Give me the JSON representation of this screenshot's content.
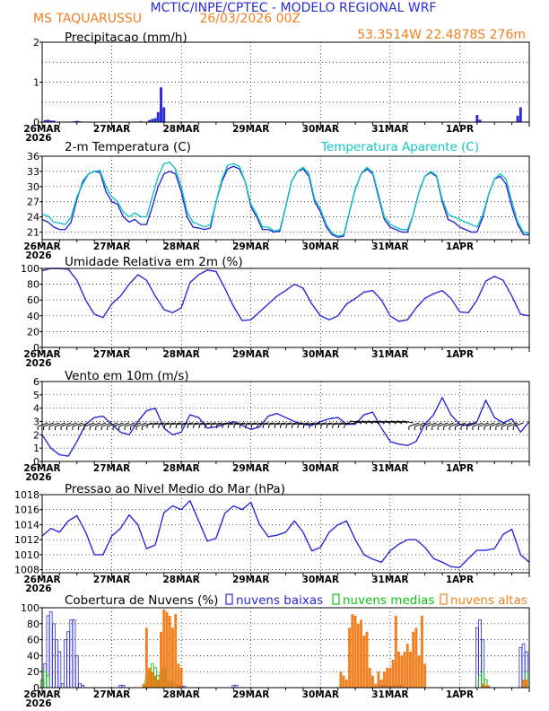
{
  "header": {
    "title": "MCTIC/INPE/CPTEC - MODELO REGIONAL WRF",
    "location": "MS TAQUARUSSU",
    "run": "26/03/2026 00Z",
    "coords": "53.3514W 22.4878S 276m"
  },
  "colors": {
    "blue": "#2a2ad8",
    "cyan": "#10c4c4",
    "green": "#10c010",
    "orange": "#f08020",
    "black": "#000000"
  },
  "x_axis": {
    "ticks": [
      "26MAR",
      "27MAR",
      "28MAR",
      "29MAR",
      "30MAR",
      "31MAR",
      "1APR"
    ],
    "year": "2026",
    "xlim_hours": [
      0,
      168
    ]
  },
  "chart_data": [
    {
      "id": "precip",
      "type": "bar",
      "title": "Precipitacao (mm/h)",
      "ylim": [
        0,
        2
      ],
      "yticks": [
        0,
        1,
        2
      ],
      "grid_y": [
        0.5,
        1,
        1.5
      ],
      "series": [
        {
          "name": "precipitacao",
          "color": "blue",
          "x": [
            1,
            2,
            3,
            4,
            11,
            12,
            13,
            34,
            37,
            38,
            39,
            40,
            41,
            42,
            150,
            151,
            164,
            165
          ],
          "values": [
            0.05,
            0.06,
            0.04,
            0.04,
            0.02,
            0.03,
            0.02,
            0.02,
            0.05,
            0.08,
            0.1,
            0.25,
            0.87,
            0.37,
            0.18,
            0.06,
            0.16,
            0.37
          ]
        }
      ]
    },
    {
      "id": "temp",
      "type": "line",
      "title": "2-m Temperatura (C)",
      "title2": "Temperatura Aparente (C)",
      "ylim": [
        19.5,
        36
      ],
      "yticks": [
        21,
        24,
        27,
        30,
        33,
        36
      ],
      "grid_y": [
        21,
        24,
        27,
        30,
        33
      ],
      "series": [
        {
          "name": "2-m Temperatura (C)",
          "color": "blue",
          "x": [
            0,
            2,
            4,
            6,
            8,
            10,
            12,
            14,
            16,
            18,
            20,
            22,
            24,
            26,
            28,
            30,
            32,
            34,
            36,
            38,
            40,
            42,
            44,
            46,
            48,
            50,
            52,
            54,
            56,
            58,
            60,
            62,
            64,
            66,
            68,
            70,
            72,
            74,
            76,
            78,
            80,
            82,
            84,
            86,
            88,
            90,
            92,
            94,
            96,
            98,
            100,
            102,
            104,
            106,
            108,
            110,
            112,
            114,
            116,
            118,
            120,
            122,
            124,
            126,
            128,
            130,
            132,
            134,
            136,
            138,
            140,
            142,
            144,
            146,
            148,
            150,
            152,
            154,
            156,
            158,
            160,
            162,
            164,
            166,
            168
          ],
          "values": [
            23.5,
            23.0,
            22.0,
            21.5,
            21.5,
            23.0,
            27.5,
            31.0,
            32.5,
            33.0,
            32.8,
            29.0,
            27.0,
            26.5,
            24.0,
            23.0,
            23.5,
            22.5,
            22.5,
            26.0,
            30.0,
            32.5,
            33.0,
            32.5,
            29.0,
            24.0,
            22.0,
            21.8,
            21.5,
            21.8,
            27.0,
            31.0,
            33.5,
            34.0,
            33.5,
            31.0,
            26.0,
            24.0,
            21.5,
            21.5,
            21.0,
            21.2,
            26.0,
            31.0,
            33.0,
            33.5,
            32.0,
            27.0,
            25.0,
            22.0,
            20.5,
            20.0,
            20.2,
            25.0,
            29.5,
            32.5,
            33.5,
            32.5,
            28.0,
            23.5,
            22.0,
            21.5,
            21.0,
            21.0,
            24.5,
            29.0,
            32.0,
            32.8,
            32.0,
            27.0,
            23.5,
            23.0,
            22.0,
            21.5,
            21.0,
            21.0,
            24.0,
            28.5,
            31.5,
            32.0,
            30.5,
            26.0,
            22.5,
            20.5,
            20.5
          ]
        },
        {
          "name": "Temperatura Aparente (C)",
          "color": "cyan",
          "x": [
            0,
            2,
            4,
            6,
            8,
            10,
            12,
            14,
            16,
            18,
            20,
            22,
            24,
            26,
            28,
            30,
            32,
            34,
            36,
            38,
            40,
            42,
            44,
            46,
            48,
            50,
            52,
            54,
            56,
            58,
            60,
            62,
            64,
            66,
            68,
            70,
            72,
            74,
            76,
            78,
            80,
            82,
            84,
            86,
            88,
            90,
            92,
            94,
            96,
            98,
            100,
            102,
            104,
            106,
            108,
            110,
            112,
            114,
            116,
            118,
            120,
            122,
            124,
            126,
            128,
            130,
            132,
            134,
            136,
            138,
            140,
            142,
            144,
            146,
            148,
            150,
            152,
            154,
            156,
            158,
            160,
            162,
            164,
            166,
            168
          ],
          "values": [
            24.5,
            24.2,
            23.0,
            22.8,
            22.5,
            24.0,
            28.0,
            30.5,
            32.5,
            33.0,
            33.2,
            30.0,
            28.0,
            27.0,
            25.0,
            24.0,
            24.8,
            24.0,
            24.0,
            28.0,
            32.0,
            34.5,
            34.8,
            33.5,
            30.0,
            25.0,
            23.0,
            22.5,
            22.0,
            22.5,
            27.0,
            31.5,
            34.2,
            34.5,
            34.0,
            31.0,
            26.5,
            24.5,
            22.0,
            22.0,
            21.2,
            21.5,
            26.0,
            31.0,
            33.0,
            33.8,
            32.5,
            27.5,
            25.5,
            22.5,
            20.8,
            20.2,
            20.5,
            25.0,
            29.5,
            32.5,
            33.8,
            32.8,
            28.5,
            24.0,
            22.5,
            22.0,
            21.5,
            21.5,
            24.5,
            29.0,
            32.0,
            33.0,
            32.2,
            27.5,
            24.5,
            24.0,
            23.5,
            23.0,
            22.5,
            22.0,
            24.5,
            28.5,
            31.5,
            32.5,
            31.5,
            27.0,
            23.0,
            21.0,
            20.8
          ]
        }
      ]
    },
    {
      "id": "rh",
      "type": "line",
      "title": "Umidade Relativa em 2m (%)",
      "ylim": [
        0,
        100
      ],
      "yticks": [
        0,
        20,
        40,
        60,
        80,
        100
      ],
      "grid_y": [
        20,
        40,
        60,
        80
      ],
      "series": [
        {
          "name": "Umidade Relativa em 2m (%)",
          "color": "blue",
          "x": [
            0,
            3,
            6,
            9,
            12,
            15,
            18,
            21,
            24,
            27,
            30,
            33,
            36,
            39,
            42,
            45,
            48,
            51,
            54,
            57,
            60,
            63,
            66,
            69,
            72,
            75,
            78,
            81,
            84,
            87,
            90,
            93,
            96,
            99,
            102,
            105,
            108,
            111,
            114,
            117,
            120,
            123,
            126,
            129,
            132,
            135,
            138,
            141,
            144,
            147,
            150,
            153,
            156,
            159,
            162,
            165,
            168
          ],
          "values": [
            97,
            100,
            100,
            99,
            85,
            60,
            42,
            38,
            55,
            65,
            80,
            92,
            85,
            65,
            48,
            44,
            50,
            82,
            92,
            98,
            96,
            75,
            52,
            34,
            35,
            45,
            55,
            65,
            72,
            80,
            75,
            55,
            40,
            35,
            40,
            55,
            62,
            70,
            72,
            60,
            40,
            33,
            35,
            50,
            62,
            68,
            72,
            62,
            45,
            44,
            60,
            84,
            90,
            85,
            65,
            42,
            40
          ]
        }
      ]
    },
    {
      "id": "wind",
      "type": "line",
      "title": "Vento em 10m (m/s)",
      "ylim": [
        0,
        6
      ],
      "yticks": [
        0,
        1,
        2,
        3,
        4,
        5,
        6
      ],
      "grid_y": [
        1,
        2,
        3,
        4,
        5
      ],
      "series": [
        {
          "name": "Vento em 10m (m/s)",
          "color": "blue",
          "x": [
            0,
            3,
            6,
            9,
            12,
            15,
            18,
            21,
            24,
            27,
            30,
            33,
            36,
            39,
            42,
            45,
            48,
            51,
            54,
            57,
            60,
            63,
            66,
            69,
            72,
            75,
            78,
            81,
            84,
            87,
            90,
            93,
            96,
            99,
            102,
            105,
            108,
            111,
            114,
            117,
            120,
            123,
            126,
            129,
            132,
            135,
            138,
            141,
            144,
            147,
            150,
            153,
            156,
            159,
            162,
            165,
            168
          ],
          "values": [
            2.0,
            1.0,
            0.5,
            0.4,
            1.5,
            2.8,
            3.3,
            3.4,
            2.8,
            2.2,
            2.0,
            3.0,
            3.8,
            4.0,
            2.5,
            2.0,
            2.2,
            3.5,
            3.3,
            2.5,
            2.6,
            2.8,
            3.0,
            2.7,
            2.4,
            2.6,
            3.4,
            3.6,
            3.3,
            3.0,
            2.8,
            2.7,
            3.0,
            3.2,
            3.3,
            2.8,
            2.8,
            3.5,
            3.7,
            2.5,
            1.5,
            1.3,
            1.2,
            1.5,
            2.8,
            3.5,
            4.8,
            3.5,
            2.8,
            2.7,
            3.0,
            4.6,
            3.3,
            2.9,
            3.2,
            2.2,
            3.0
          ]
        }
      ]
    },
    {
      "id": "press",
      "type": "line",
      "title": "Pressao ao Nivel Medio do Mar (hPa)",
      "ylim": [
        1007.6,
        1018
      ],
      "yticks": [
        1008,
        1010,
        1012,
        1014,
        1016,
        1018
      ],
      "grid_y": [
        1008,
        1010,
        1012,
        1014,
        1016
      ],
      "series": [
        {
          "name": "Pressao ao Nivel Medio do Mar (hPa)",
          "color": "blue",
          "x": [
            0,
            3,
            6,
            9,
            12,
            15,
            18,
            21,
            24,
            27,
            30,
            33,
            36,
            39,
            42,
            45,
            48,
            51,
            54,
            57,
            60,
            63,
            66,
            69,
            72,
            75,
            78,
            81,
            84,
            87,
            90,
            93,
            96,
            99,
            102,
            105,
            108,
            111,
            114,
            117,
            120,
            123,
            126,
            129,
            132,
            135,
            138,
            141,
            144,
            147,
            150,
            153,
            156,
            159,
            162,
            165,
            168
          ],
          "values": [
            1012.5,
            1013.5,
            1013.0,
            1014.5,
            1015.2,
            1013.0,
            1010.0,
            1010.0,
            1012.5,
            1013.5,
            1015.3,
            1014.0,
            1010.8,
            1011.3,
            1015.6,
            1016.5,
            1016.0,
            1017.2,
            1014.5,
            1011.8,
            1012.2,
            1015.5,
            1016.5,
            1016.0,
            1017.0,
            1014.0,
            1012.4,
            1012.6,
            1013.0,
            1014.5,
            1013.0,
            1010.5,
            1011.0,
            1013.0,
            1014.0,
            1014.5,
            1012.0,
            1010.0,
            1009.4,
            1009.0,
            1010.5,
            1011.4,
            1012.0,
            1012.0,
            1011.0,
            1009.5,
            1009.0,
            1008.4,
            1008.3,
            1009.5,
            1010.6,
            1010.6,
            1010.8,
            1012.7,
            1013.4,
            1010.0,
            1009.0
          ]
        }
      ]
    },
    {
      "id": "clouds",
      "type": "bar",
      "title": "Cobertura de Nuvens (%)",
      "legend": {
        "low": "nuvens baixas",
        "mid": "nuvens medias",
        "high": "nuvens altas"
      },
      "ylim": [
        0,
        100
      ],
      "yticks": [
        0,
        20,
        40,
        60,
        80,
        100
      ],
      "grid_y": [
        20,
        40,
        60,
        80
      ],
      "series": [
        {
          "name": "nuvens baixas",
          "color": "blue",
          "filled": false,
          "x": [
            1,
            2,
            3,
            4,
            5,
            6,
            7,
            8,
            9,
            10,
            11,
            12,
            13,
            14,
            27,
            28,
            47,
            48,
            49,
            66,
            67,
            117,
            118,
            119,
            120,
            121,
            122,
            123,
            124,
            150,
            151,
            152,
            153,
            165,
            166,
            167
          ],
          "values": [
            30,
            90,
            95,
            80,
            60,
            45,
            5,
            60,
            70,
            85,
            85,
            40,
            5,
            3,
            3,
            3,
            3,
            2,
            2,
            3,
            3,
            3,
            3,
            2,
            2,
            2,
            3,
            3,
            2,
            75,
            85,
            60,
            10,
            50,
            55,
            45
          ]
        },
        {
          "name": "nuvens medias",
          "color": "green",
          "filled": false,
          "x": [
            0,
            1,
            2,
            36,
            37,
            38,
            39,
            40,
            41,
            42,
            43,
            44,
            45,
            151,
            152,
            153,
            167
          ],
          "values": [
            10,
            20,
            15,
            10,
            20,
            30,
            25,
            15,
            20,
            25,
            10,
            8,
            5,
            15,
            20,
            10,
            20
          ]
        },
        {
          "name": "nuvens altas",
          "color": "orange",
          "filled": true,
          "x": [
            35,
            36,
            37,
            38,
            39,
            40,
            41,
            42,
            43,
            44,
            45,
            46,
            47,
            48,
            103,
            104,
            105,
            106,
            107,
            108,
            109,
            110,
            111,
            112,
            113,
            114,
            115,
            116,
            117,
            118,
            119,
            120,
            121,
            122,
            123,
            124,
            125,
            126,
            127,
            128,
            129,
            130,
            131,
            132,
            152,
            153,
            154,
            166,
            167
          ],
          "values": [
            5,
            75,
            25,
            20,
            15,
            10,
            70,
            98,
            95,
            90,
            75,
            92,
            30,
            25,
            20,
            15,
            10,
            75,
            92,
            90,
            80,
            85,
            65,
            70,
            25,
            15,
            5,
            20,
            10,
            20,
            25,
            25,
            35,
            90,
            45,
            40,
            45,
            55,
            45,
            70,
            75,
            40,
            90,
            30,
            5,
            3,
            3,
            10,
            10
          ]
        }
      ]
    }
  ]
}
